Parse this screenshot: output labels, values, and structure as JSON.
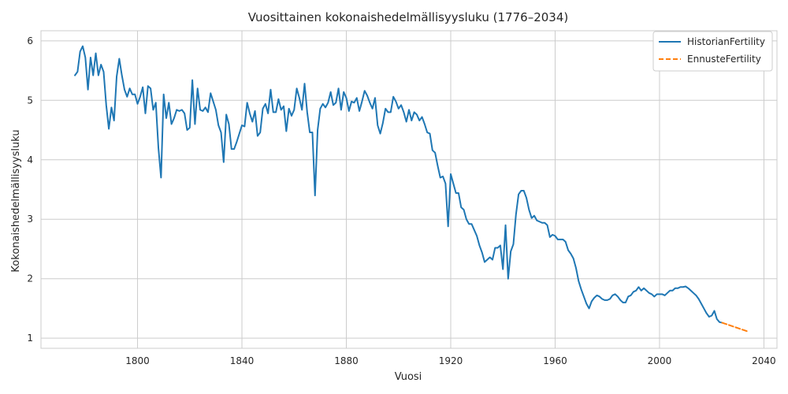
{
  "chart_data": {
    "type": "line",
    "title": "Vuosittainen kokonaishedelmällisyysluku (1776–2034)",
    "xlabel": "Vuosi",
    "ylabel": "Kokonaishedelmällisyysluku",
    "xlim": [
      1763,
      2045
    ],
    "ylim": [
      0.83,
      6.17
    ],
    "xticks": [
      1800,
      1840,
      1880,
      1920,
      1960,
      2000,
      2040
    ],
    "yticks": [
      1,
      2,
      3,
      4,
      5,
      6
    ],
    "grid": true,
    "legend_position": "top-right",
    "series": [
      {
        "name": "HistorianFertility",
        "color": "#1f77b4",
        "dash": "solid",
        "points": [
          [
            1776,
            5.42
          ],
          [
            1777,
            5.48
          ],
          [
            1778,
            5.82
          ],
          [
            1779,
            5.91
          ],
          [
            1780,
            5.72
          ],
          [
            1781,
            5.18
          ],
          [
            1782,
            5.72
          ],
          [
            1783,
            5.42
          ],
          [
            1784,
            5.79
          ],
          [
            1785,
            5.42
          ],
          [
            1786,
            5.6
          ],
          [
            1787,
            5.48
          ],
          [
            1788,
            4.92
          ],
          [
            1789,
            4.52
          ],
          [
            1790,
            4.88
          ],
          [
            1791,
            4.66
          ],
          [
            1792,
            5.4
          ],
          [
            1793,
            5.7
          ],
          [
            1794,
            5.42
          ],
          [
            1795,
            5.18
          ],
          [
            1796,
            5.06
          ],
          [
            1797,
            5.2
          ],
          [
            1798,
            5.1
          ],
          [
            1799,
            5.1
          ],
          [
            1800,
            4.94
          ],
          [
            1801,
            5.06
          ],
          [
            1802,
            5.22
          ],
          [
            1803,
            4.78
          ],
          [
            1804,
            5.24
          ],
          [
            1805,
            5.2
          ],
          [
            1806,
            4.84
          ],
          [
            1807,
            4.96
          ],
          [
            1808,
            4.2
          ],
          [
            1809,
            3.7
          ],
          [
            1810,
            5.1
          ],
          [
            1811,
            4.7
          ],
          [
            1812,
            4.96
          ],
          [
            1813,
            4.6
          ],
          [
            1814,
            4.7
          ],
          [
            1815,
            4.84
          ],
          [
            1816,
            4.82
          ],
          [
            1817,
            4.84
          ],
          [
            1818,
            4.78
          ],
          [
            1819,
            4.5
          ],
          [
            1820,
            4.54
          ],
          [
            1821,
            5.34
          ],
          [
            1822,
            4.6
          ],
          [
            1823,
            5.2
          ],
          [
            1824,
            4.84
          ],
          [
            1825,
            4.82
          ],
          [
            1826,
            4.88
          ],
          [
            1827,
            4.8
          ],
          [
            1828,
            5.12
          ],
          [
            1829,
            4.98
          ],
          [
            1830,
            4.84
          ],
          [
            1831,
            4.58
          ],
          [
            1832,
            4.46
          ],
          [
            1833,
            3.96
          ],
          [
            1834,
            4.76
          ],
          [
            1835,
            4.6
          ],
          [
            1836,
            4.18
          ],
          [
            1837,
            4.18
          ],
          [
            1838,
            4.3
          ],
          [
            1839,
            4.44
          ],
          [
            1840,
            4.58
          ],
          [
            1841,
            4.56
          ],
          [
            1842,
            4.96
          ],
          [
            1843,
            4.78
          ],
          [
            1844,
            4.64
          ],
          [
            1845,
            4.82
          ],
          [
            1846,
            4.4
          ],
          [
            1847,
            4.46
          ],
          [
            1848,
            4.86
          ],
          [
            1849,
            4.94
          ],
          [
            1850,
            4.78
          ],
          [
            1851,
            5.18
          ],
          [
            1852,
            4.8
          ],
          [
            1853,
            4.8
          ],
          [
            1854,
            5.02
          ],
          [
            1855,
            4.84
          ],
          [
            1856,
            4.9
          ],
          [
            1857,
            4.48
          ],
          [
            1858,
            4.86
          ],
          [
            1859,
            4.74
          ],
          [
            1860,
            4.84
          ],
          [
            1861,
            5.2
          ],
          [
            1862,
            5.04
          ],
          [
            1863,
            4.84
          ],
          [
            1864,
            5.28
          ],
          [
            1865,
            4.8
          ],
          [
            1866,
            4.46
          ],
          [
            1867,
            4.46
          ],
          [
            1868,
            3.4
          ],
          [
            1869,
            4.5
          ],
          [
            1870,
            4.86
          ],
          [
            1871,
            4.94
          ],
          [
            1872,
            4.88
          ],
          [
            1873,
            4.96
          ],
          [
            1874,
            5.14
          ],
          [
            1875,
            4.92
          ],
          [
            1876,
            4.96
          ],
          [
            1877,
            5.2
          ],
          [
            1878,
            4.84
          ],
          [
            1879,
            5.14
          ],
          [
            1880,
            5.04
          ],
          [
            1881,
            4.82
          ],
          [
            1882,
            4.98
          ],
          [
            1883,
            4.96
          ],
          [
            1884,
            5.04
          ],
          [
            1885,
            4.82
          ],
          [
            1886,
            4.98
          ],
          [
            1887,
            5.16
          ],
          [
            1888,
            5.08
          ],
          [
            1889,
            4.96
          ],
          [
            1890,
            4.86
          ],
          [
            1891,
            5.04
          ],
          [
            1892,
            4.58
          ],
          [
            1893,
            4.44
          ],
          [
            1894,
            4.62
          ],
          [
            1895,
            4.86
          ],
          [
            1896,
            4.8
          ],
          [
            1897,
            4.8
          ],
          [
            1898,
            5.06
          ],
          [
            1899,
            4.98
          ],
          [
            1900,
            4.86
          ],
          [
            1901,
            4.92
          ],
          [
            1902,
            4.8
          ],
          [
            1903,
            4.64
          ],
          [
            1904,
            4.84
          ],
          [
            1905,
            4.66
          ],
          [
            1906,
            4.8
          ],
          [
            1907,
            4.76
          ],
          [
            1908,
            4.66
          ],
          [
            1909,
            4.72
          ],
          [
            1910,
            4.6
          ],
          [
            1911,
            4.46
          ],
          [
            1912,
            4.44
          ],
          [
            1913,
            4.16
          ],
          [
            1914,
            4.12
          ],
          [
            1915,
            3.9
          ],
          [
            1916,
            3.7
          ],
          [
            1917,
            3.72
          ],
          [
            1918,
            3.6
          ],
          [
            1919,
            2.88
          ],
          [
            1920,
            3.76
          ],
          [
            1921,
            3.6
          ],
          [
            1922,
            3.44
          ],
          [
            1923,
            3.44
          ],
          [
            1924,
            3.2
          ],
          [
            1925,
            3.16
          ],
          [
            1926,
            3.0
          ],
          [
            1927,
            2.92
          ],
          [
            1928,
            2.92
          ],
          [
            1929,
            2.82
          ],
          [
            1930,
            2.72
          ],
          [
            1931,
            2.56
          ],
          [
            1932,
            2.44
          ],
          [
            1933,
            2.28
          ],
          [
            1934,
            2.32
          ],
          [
            1935,
            2.36
          ],
          [
            1936,
            2.32
          ],
          [
            1937,
            2.52
          ],
          [
            1938,
            2.52
          ],
          [
            1939,
            2.56
          ],
          [
            1940,
            2.16
          ],
          [
            1941,
            2.9
          ],
          [
            1942,
            2.0
          ],
          [
            1943,
            2.46
          ],
          [
            1944,
            2.58
          ],
          [
            1945,
            3.08
          ],
          [
            1946,
            3.42
          ],
          [
            1947,
            3.48
          ],
          [
            1948,
            3.48
          ],
          [
            1949,
            3.36
          ],
          [
            1950,
            3.16
          ],
          [
            1951,
            3.02
          ],
          [
            1952,
            3.06
          ],
          [
            1953,
            2.98
          ],
          [
            1954,
            2.96
          ],
          [
            1955,
            2.94
          ],
          [
            1956,
            2.94
          ],
          [
            1957,
            2.9
          ],
          [
            1958,
            2.7
          ],
          [
            1959,
            2.74
          ],
          [
            1960,
            2.72
          ],
          [
            1961,
            2.66
          ],
          [
            1962,
            2.66
          ],
          [
            1963,
            2.66
          ],
          [
            1964,
            2.62
          ],
          [
            1965,
            2.48
          ],
          [
            1966,
            2.42
          ],
          [
            1967,
            2.34
          ],
          [
            1968,
            2.18
          ],
          [
            1969,
            1.96
          ],
          [
            1970,
            1.82
          ],
          [
            1971,
            1.7
          ],
          [
            1972,
            1.58
          ],
          [
            1973,
            1.5
          ],
          [
            1974,
            1.62
          ],
          [
            1975,
            1.68
          ],
          [
            1976,
            1.72
          ],
          [
            1977,
            1.7
          ],
          [
            1978,
            1.66
          ],
          [
            1979,
            1.64
          ],
          [
            1980,
            1.64
          ],
          [
            1981,
            1.66
          ],
          [
            1982,
            1.72
          ],
          [
            1983,
            1.74
          ],
          [
            1984,
            1.7
          ],
          [
            1985,
            1.64
          ],
          [
            1986,
            1.6
          ],
          [
            1987,
            1.6
          ],
          [
            1988,
            1.7
          ],
          [
            1989,
            1.72
          ],
          [
            1990,
            1.78
          ],
          [
            1991,
            1.8
          ],
          [
            1992,
            1.86
          ],
          [
            1993,
            1.8
          ],
          [
            1994,
            1.84
          ],
          [
            1995,
            1.8
          ],
          [
            1996,
            1.76
          ],
          [
            1997,
            1.74
          ],
          [
            1998,
            1.7
          ],
          [
            1999,
            1.74
          ],
          [
            2000,
            1.74
          ],
          [
            2001,
            1.74
          ],
          [
            2002,
            1.72
          ],
          [
            2003,
            1.76
          ],
          [
            2004,
            1.8
          ],
          [
            2005,
            1.8
          ],
          [
            2006,
            1.84
          ],
          [
            2007,
            1.84
          ],
          [
            2008,
            1.86
          ],
          [
            2009,
            1.86
          ],
          [
            2010,
            1.87
          ],
          [
            2011,
            1.84
          ],
          [
            2012,
            1.8
          ],
          [
            2013,
            1.76
          ],
          [
            2014,
            1.72
          ],
          [
            2015,
            1.66
          ],
          [
            2016,
            1.58
          ],
          [
            2017,
            1.5
          ],
          [
            2018,
            1.42
          ],
          [
            2019,
            1.36
          ],
          [
            2020,
            1.38
          ],
          [
            2021,
            1.46
          ],
          [
            2022,
            1.32
          ],
          [
            2023,
            1.27
          ],
          [
            2024,
            1.26
          ]
        ]
      },
      {
        "name": "EnnusteFertility",
        "color": "#ff7f0e",
        "dash": "dashed",
        "points": [
          [
            2024,
            1.26
          ],
          [
            2025,
            1.245
          ],
          [
            2026,
            1.23
          ],
          [
            2027,
            1.215
          ],
          [
            2028,
            1.2
          ],
          [
            2029,
            1.185
          ],
          [
            2030,
            1.17
          ],
          [
            2031,
            1.155
          ],
          [
            2032,
            1.14
          ],
          [
            2033,
            1.125
          ],
          [
            2034,
            1.11
          ]
        ]
      }
    ]
  }
}
